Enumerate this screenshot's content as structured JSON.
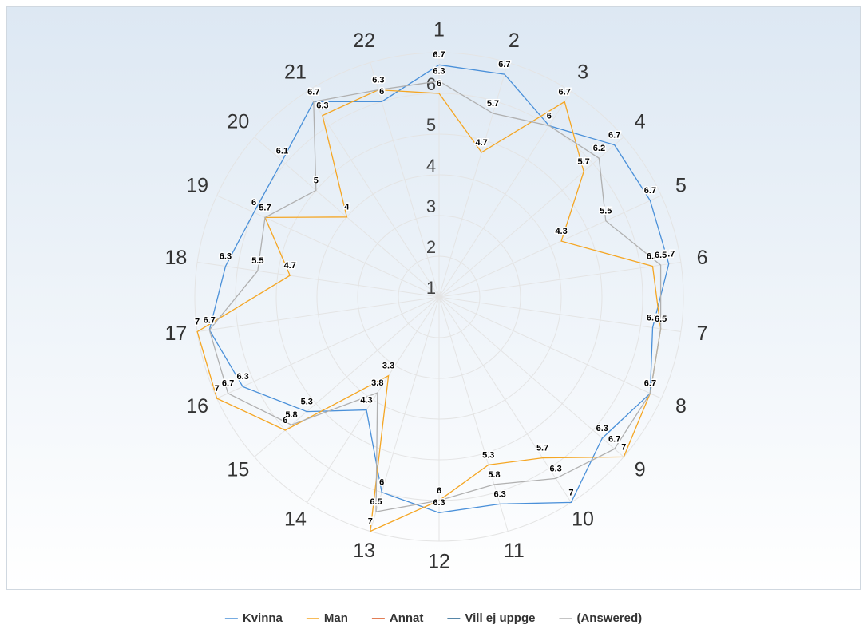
{
  "chart_data": {
    "type": "radar",
    "categories": [
      "1",
      "2",
      "3",
      "4",
      "5",
      "6",
      "7",
      "8",
      "9",
      "10",
      "11",
      "12",
      "13",
      "14",
      "15",
      "16",
      "17",
      "18",
      "19",
      "20",
      "21",
      "22"
    ],
    "ylim": [
      1,
      7
    ],
    "yticks": [
      1,
      2,
      3,
      4,
      5,
      6
    ],
    "grid": true,
    "legend": "bottom",
    "series": [
      {
        "name": "Kvinna",
        "color": "#4a90d9",
        "values": [
          6.7,
          6.7,
          6,
          6.7,
          6.7,
          6.7,
          6.3,
          6.7,
          6.3,
          7,
          6.3,
          6.3,
          6,
          4.3,
          5.3,
          6.3,
          6.7,
          6.3,
          6,
          6.1,
          6.7,
          6
        ]
      },
      {
        "name": "Man",
        "color": "#f5a623",
        "values": [
          6,
          4.7,
          6.7,
          5.7,
          4.3,
          6.3,
          6.5,
          6.7,
          7,
          5.7,
          5.3,
          6,
          7,
          3.3,
          6,
          7,
          7,
          4.7,
          5.7,
          4,
          6.3,
          6.3
        ]
      },
      {
        "name": "Annat",
        "color": "#d9531e"
      },
      {
        "name": "Vill ej uppge",
        "color": "#1f5f8b"
      },
      {
        "name": "(Answered)",
        "color": "#b0b0b0",
        "values": [
          6.3,
          5.7,
          6,
          6.2,
          5.5,
          6.5,
          6.5,
          6.7,
          6.7,
          6.3,
          5.8,
          6,
          6.5,
          3.8,
          5.8,
          6.7,
          6.7,
          5.5,
          5.7,
          5,
          6.7,
          6.3
        ]
      }
    ]
  }
}
